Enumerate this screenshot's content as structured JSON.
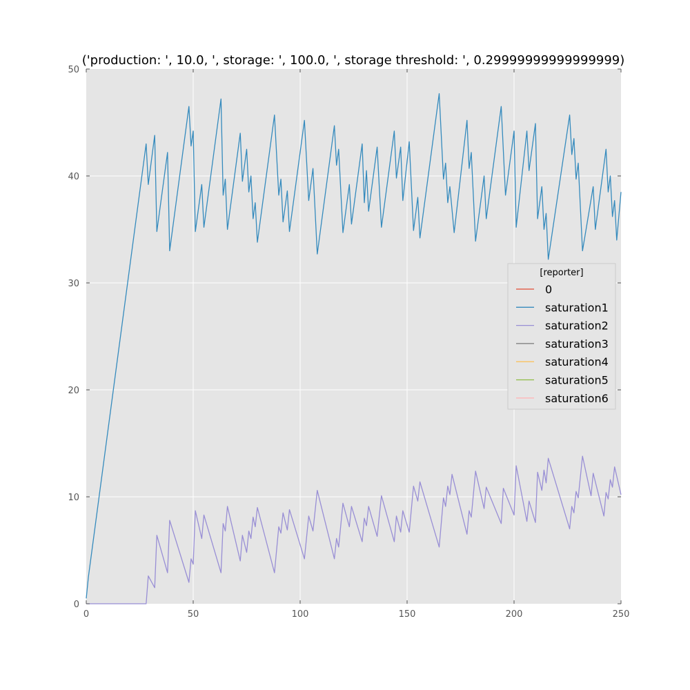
{
  "chart_data": {
    "type": "line",
    "title": "('production: ', 10.0, ', storage: ', 100.0, ', storage threshold: ', 0.29999999999999999)",
    "xlabel": "",
    "ylabel": "",
    "xlim": [
      0,
      250
    ],
    "ylim": [
      0,
      50
    ],
    "x_ticks": [
      0,
      50,
      100,
      150,
      200,
      250
    ],
    "y_ticks": [
      0,
      10,
      20,
      30,
      40,
      50
    ],
    "grid": true,
    "legend": {
      "title": "[reporter]",
      "placement": "center-right"
    },
    "series": [
      {
        "name": "0",
        "color": "#e24a33",
        "points": []
      },
      {
        "name": "saturation1",
        "color": "#348abd",
        "points": [
          [
            0,
            0.5
          ],
          [
            1,
            2.5
          ],
          [
            28,
            43
          ],
          [
            29,
            39.2
          ],
          [
            32,
            43.8
          ],
          [
            33,
            34.8
          ],
          [
            38,
            42.2
          ],
          [
            39,
            33
          ],
          [
            48,
            46.5
          ],
          [
            49,
            42.8
          ],
          [
            50,
            44.2
          ],
          [
            51,
            34.8
          ],
          [
            54,
            39.2
          ],
          [
            55,
            35.2
          ],
          [
            63,
            47.2
          ],
          [
            64,
            38.2
          ],
          [
            65,
            39.7
          ],
          [
            66,
            35
          ],
          [
            72,
            44
          ],
          [
            73,
            39.5
          ],
          [
            75,
            42.5
          ],
          [
            76,
            38.5
          ],
          [
            77,
            40
          ],
          [
            78,
            36
          ],
          [
            79,
            37.5
          ],
          [
            80,
            33.8
          ],
          [
            88,
            45.7
          ],
          [
            90,
            38.2
          ],
          [
            91,
            39.7
          ],
          [
            92,
            35.7
          ],
          [
            94,
            38.6
          ],
          [
            95,
            34.8
          ],
          [
            102,
            45.2
          ],
          [
            104,
            37.7
          ],
          [
            106,
            40.7
          ],
          [
            108,
            32.7
          ],
          [
            116,
            44.7
          ],
          [
            117,
            41
          ],
          [
            118,
            42.5
          ],
          [
            120,
            34.7
          ],
          [
            123,
            39.2
          ],
          [
            124,
            35.5
          ],
          [
            129,
            43
          ],
          [
            130,
            37.5
          ],
          [
            131,
            40.5
          ],
          [
            132,
            36.7
          ],
          [
            136,
            42.7
          ],
          [
            138,
            35.2
          ],
          [
            144,
            44.2
          ],
          [
            145,
            39.8
          ],
          [
            147,
            42.7
          ],
          [
            148,
            37.7
          ],
          [
            151,
            43.2
          ],
          [
            153,
            34.9
          ],
          [
            155,
            38
          ],
          [
            156,
            34.2
          ],
          [
            165,
            47.7
          ],
          [
            167,
            39.7
          ],
          [
            168,
            41.2
          ],
          [
            169,
            37.5
          ],
          [
            170,
            39
          ],
          [
            172,
            34.7
          ],
          [
            178,
            45.2
          ],
          [
            179,
            40.7
          ],
          [
            180,
            42.2
          ],
          [
            182,
            33.9
          ],
          [
            186,
            40
          ],
          [
            187,
            36
          ],
          [
            194,
            46.5
          ],
          [
            196,
            38.2
          ],
          [
            200,
            44.2
          ],
          [
            201,
            35.2
          ],
          [
            206,
            44.2
          ],
          [
            207,
            40.5
          ],
          [
            210,
            44.9
          ],
          [
            211,
            36
          ],
          [
            213,
            39
          ],
          [
            214,
            35
          ],
          [
            215,
            36.5
          ],
          [
            216,
            32.2
          ],
          [
            226,
            45.7
          ],
          [
            227,
            42
          ],
          [
            228,
            43.5
          ],
          [
            229,
            39.7
          ],
          [
            230,
            41.2
          ],
          [
            232,
            33
          ],
          [
            237,
            39
          ],
          [
            238,
            35
          ],
          [
            243,
            42.5
          ],
          [
            244,
            38.5
          ],
          [
            245,
            40
          ],
          [
            246,
            36.2
          ],
          [
            247,
            37.7
          ],
          [
            248,
            34
          ],
          [
            250,
            38.5
          ]
        ]
      },
      {
        "name": "saturation2",
        "color": "#988ed5",
        "points": [
          [
            0,
            0
          ],
          [
            28,
            0
          ],
          [
            29,
            2.6
          ],
          [
            32,
            1.5
          ],
          [
            33,
            6.4
          ],
          [
            38,
            2.9
          ],
          [
            39,
            7.8
          ],
          [
            48,
            2
          ],
          [
            49,
            4.2
          ],
          [
            50,
            3.7
          ],
          [
            51,
            8.7
          ],
          [
            54,
            6.1
          ],
          [
            55,
            8.3
          ],
          [
            63,
            2.9
          ],
          [
            64,
            7.5
          ],
          [
            65,
            6.8
          ],
          [
            66,
            9.1
          ],
          [
            72,
            4
          ],
          [
            73,
            6.4
          ],
          [
            75,
            4.8
          ],
          [
            76,
            6.8
          ],
          [
            77,
            6.1
          ],
          [
            78,
            8.1
          ],
          [
            79,
            7.2
          ],
          [
            80,
            9
          ],
          [
            88,
            2.9
          ],
          [
            90,
            7.2
          ],
          [
            91,
            6.6
          ],
          [
            92,
            8.5
          ],
          [
            94,
            6.9
          ],
          [
            95,
            8.8
          ],
          [
            102,
            4.2
          ],
          [
            104,
            8.2
          ],
          [
            106,
            6.8
          ],
          [
            108,
            10.6
          ],
          [
            116,
            4.2
          ],
          [
            117,
            6.1
          ],
          [
            118,
            5.3
          ],
          [
            120,
            9.4
          ],
          [
            123,
            7.2
          ],
          [
            124,
            9.1
          ],
          [
            129,
            5.8
          ],
          [
            130,
            8
          ],
          [
            131,
            7.3
          ],
          [
            132,
            9.1
          ],
          [
            136,
            6.3
          ],
          [
            138,
            10.1
          ],
          [
            144,
            5.8
          ],
          [
            145,
            8.2
          ],
          [
            147,
            6.7
          ],
          [
            148,
            8.7
          ],
          [
            151,
            6.7
          ],
          [
            153,
            11
          ],
          [
            155,
            9.6
          ],
          [
            156,
            11.4
          ],
          [
            165,
            5.3
          ],
          [
            167,
            9.9
          ],
          [
            168,
            9.1
          ],
          [
            169,
            11
          ],
          [
            170,
            10.2
          ],
          [
            171,
            12.1
          ],
          [
            178,
            6.5
          ],
          [
            179,
            8.7
          ],
          [
            180,
            8.1
          ],
          [
            182,
            12.4
          ],
          [
            186,
            8.9
          ],
          [
            187,
            10.9
          ],
          [
            194,
            7.5
          ],
          [
            195,
            10.8
          ],
          [
            200,
            8.3
          ],
          [
            201,
            12.9
          ],
          [
            206,
            7.7
          ],
          [
            207,
            9.6
          ],
          [
            210,
            7.6
          ],
          [
            211,
            12.3
          ],
          [
            213,
            10.6
          ],
          [
            214,
            12.5
          ],
          [
            215,
            11.3
          ],
          [
            216,
            13.6
          ],
          [
            226,
            7
          ],
          [
            227,
            9.1
          ],
          [
            228,
            8.5
          ],
          [
            229,
            10.5
          ],
          [
            230,
            9.9
          ],
          [
            232,
            13.8
          ],
          [
            236,
            10.1
          ],
          [
            237,
            12.2
          ],
          [
            242,
            8.2
          ],
          [
            243,
            10.4
          ],
          [
            244,
            9.8
          ],
          [
            245,
            11.6
          ],
          [
            246,
            10.9
          ],
          [
            247,
            12.8
          ],
          [
            250,
            10.2
          ]
        ]
      },
      {
        "name": "saturation3",
        "color": "#777777",
        "points": []
      },
      {
        "name": "saturation4",
        "color": "#fbc15e",
        "points": []
      },
      {
        "name": "saturation5",
        "color": "#8eba42",
        "points": []
      },
      {
        "name": "saturation6",
        "color": "#ffb5b8",
        "points": []
      }
    ]
  }
}
